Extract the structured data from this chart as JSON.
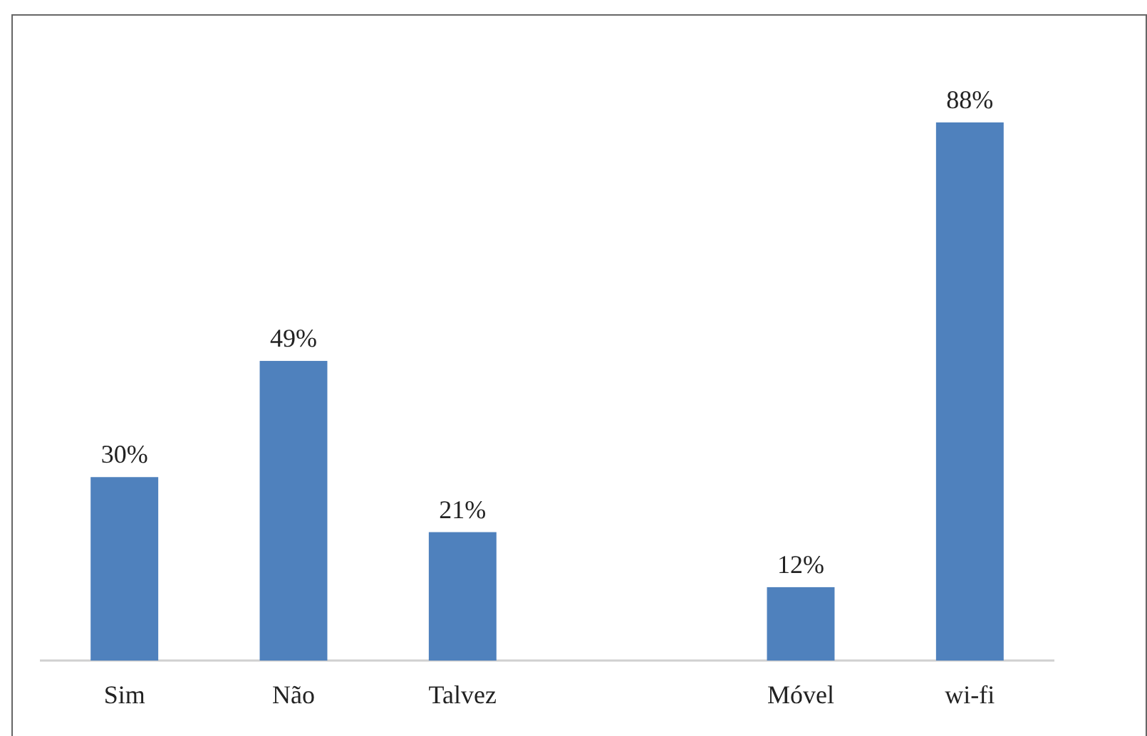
{
  "chart_data": {
    "type": "bar",
    "categories": [
      "Sim",
      "Não",
      "Talvez",
      null,
      "Móvel",
      "wi-fi"
    ],
    "values": [
      30,
      49,
      21,
      null,
      12,
      88
    ],
    "value_labels": [
      "30%",
      "49%",
      "21%",
      null,
      "12%",
      "88%"
    ],
    "color": "#4f81bd"
  }
}
